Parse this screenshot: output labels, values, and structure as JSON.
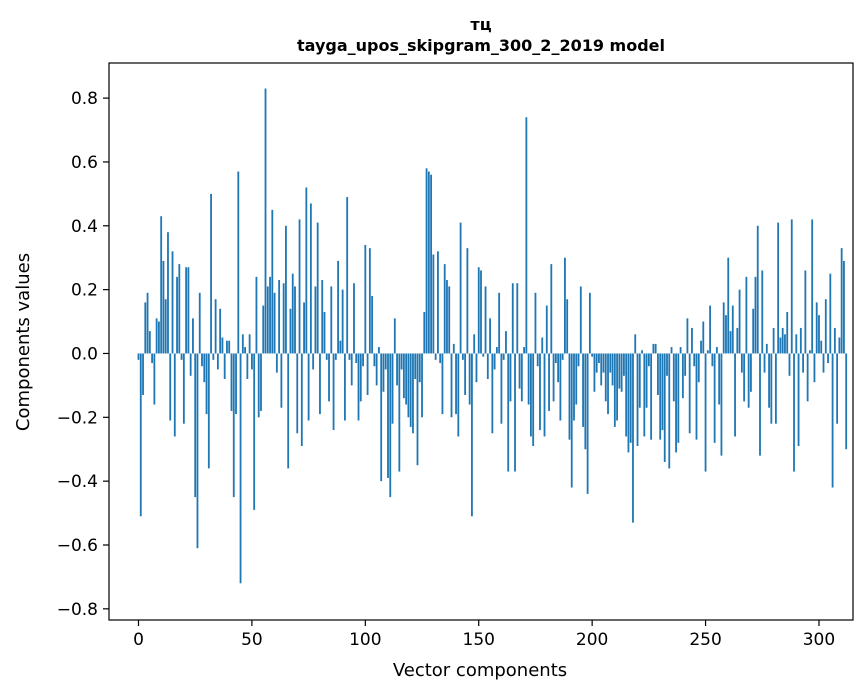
{
  "chart_data": {
    "type": "bar",
    "title": "тц",
    "subtitle": "tayga_upos_skipgram_300_2_2019 model",
    "xlabel": "Vector components",
    "ylabel": "Components values",
    "xlim": [
      -13,
      315
    ],
    "ylim": [
      -0.835,
      0.91
    ],
    "xticks": [
      0,
      50,
      100,
      150,
      200,
      250,
      300
    ],
    "xtick_labels": [
      "0",
      "50",
      "100",
      "150",
      "200",
      "250",
      "300"
    ],
    "yticks": [
      -0.8,
      -0.6,
      -0.4,
      -0.2,
      0.0,
      0.2,
      0.4,
      0.6,
      0.8
    ],
    "ytick_labels": [
      "−0.8",
      "−0.6",
      "−0.4",
      "−0.2",
      "0.0",
      "0.2",
      "0.4",
      "0.6",
      "0.8"
    ],
    "bar_color": "#1f77b4",
    "grid": false,
    "values": [
      -0.02,
      -0.51,
      -0.13,
      0.16,
      0.19,
      0.07,
      -0.03,
      -0.16,
      0.11,
      0.1,
      0.43,
      0.29,
      0.17,
      0.38,
      -0.21,
      0.32,
      -0.26,
      0.24,
      0.28,
      -0.02,
      -0.22,
      0.27,
      0.27,
      -0.07,
      0.11,
      -0.45,
      -0.61,
      0.19,
      -0.04,
      -0.09,
      -0.19,
      -0.36,
      0.5,
      -0.02,
      0.17,
      -0.05,
      0.14,
      0.05,
      -0.08,
      0.04,
      0.04,
      -0.18,
      -0.45,
      -0.19,
      0.57,
      -0.72,
      0.06,
      0.02,
      -0.08,
      0.06,
      -0.05,
      -0.49,
      0.24,
      -0.2,
      -0.18,
      0.15,
      0.83,
      0.21,
      0.24,
      0.45,
      0.19,
      -0.06,
      0.23,
      -0.17,
      0.22,
      0.4,
      -0.36,
      0.14,
      0.25,
      0.21,
      -0.25,
      0.42,
      -0.29,
      0.16,
      0.52,
      -0.21,
      0.47,
      -0.05,
      0.21,
      0.41,
      -0.19,
      0.23,
      0.13,
      -0.02,
      -0.15,
      0.21,
      -0.24,
      -0.02,
      0.29,
      0.04,
      0.2,
      -0.21,
      0.49,
      -0.02,
      -0.1,
      0.22,
      -0.03,
      -0.21,
      -0.15,
      -0.04,
      0.34,
      -0.13,
      0.33,
      0.18,
      -0.04,
      -0.1,
      0.02,
      -0.4,
      -0.12,
      -0.05,
      -0.39,
      -0.45,
      -0.22,
      0.11,
      -0.1,
      -0.37,
      -0.05,
      -0.14,
      -0.16,
      -0.2,
      -0.23,
      -0.25,
      -0.08,
      -0.35,
      -0.09,
      -0.2,
      0.13,
      0.58,
      0.57,
      0.56,
      0.31,
      -0.02,
      0.32,
      -0.03,
      -0.19,
      0.28,
      0.23,
      0.21,
      -0.2,
      0.03,
      -0.19,
      -0.26,
      0.41,
      -0.02,
      -0.13,
      0.33,
      -0.16,
      -0.51,
      0.06,
      -0.09,
      0.27,
      0.26,
      -0.01,
      0.21,
      -0.08,
      0.11,
      -0.25,
      -0.05,
      0.02,
      0.19,
      -0.22,
      -0.02,
      0.07,
      -0.37,
      -0.15,
      0.22,
      -0.37,
      0.22,
      -0.11,
      -0.15,
      0.02,
      0.74,
      -0.16,
      -0.26,
      -0.29,
      0.19,
      -0.04,
      -0.24,
      0.05,
      -0.26,
      0.15,
      -0.18,
      0.28,
      -0.15,
      -0.03,
      -0.09,
      -0.21,
      -0.02,
      0.3,
      0.17,
      -0.27,
      -0.42,
      -0.21,
      -0.16,
      -0.04,
      0.21,
      -0.23,
      -0.3,
      -0.44,
      0.19,
      -0.01,
      -0.12,
      -0.06,
      -0.03,
      -0.1,
      -0.06,
      -0.15,
      -0.19,
      -0.06,
      -0.1,
      -0.23,
      -0.21,
      -0.11,
      -0.12,
      -0.07,
      -0.26,
      -0.31,
      -0.28,
      -0.53,
      0.06,
      -0.29,
      -0.17,
      0.01,
      -0.26,
      -0.17,
      -0.04,
      -0.27,
      0.03,
      0.03,
      -0.13,
      -0.27,
      -0.24,
      -0.34,
      -0.07,
      -0.36,
      0.02,
      -0.15,
      -0.31,
      -0.28,
      0.02,
      -0.14,
      -0.07,
      0.11,
      -0.25,
      0.08,
      -0.04,
      -0.27,
      -0.09,
      0.04,
      0.1,
      -0.37,
      0.01,
      0.15,
      -0.04,
      -0.28,
      0.02,
      -0.16,
      -0.32,
      0.16,
      0.12,
      0.3,
      0.07,
      0.15,
      -0.26,
      0.08,
      0.2,
      -0.06,
      -0.15,
      0.24,
      -0.17,
      -0.12,
      0.14,
      0.24,
      0.4,
      -0.32,
      0.26,
      -0.06,
      0.03,
      -0.17,
      -0.22,
      0.08,
      -0.22,
      0.41,
      0.05,
      0.08,
      0.06,
      0.13,
      -0.07,
      0.42,
      -0.37,
      0.06,
      -0.29,
      0.08,
      -0.06,
      0.26,
      -0.15,
      0.01,
      0.42,
      -0.09,
      0.16,
      0.12,
      0.04,
      -0.06,
      0.17,
      -0.03,
      0.25,
      -0.42,
      0.08,
      -0.22,
      0.05,
      0.33,
      0.29,
      -0.3
    ]
  }
}
